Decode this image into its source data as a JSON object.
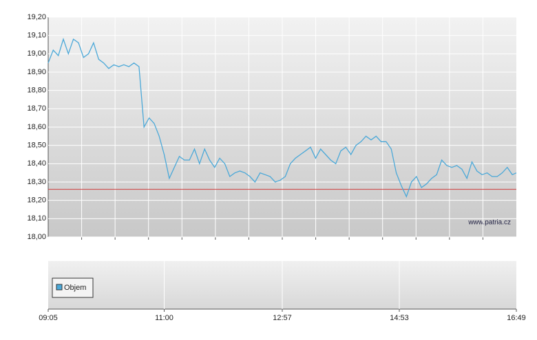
{
  "chart_data": {
    "type": "line",
    "x": [
      "09:05",
      "09:10",
      "09:15",
      "09:20",
      "09:25",
      "09:30",
      "09:35",
      "09:40",
      "09:45",
      "09:50",
      "09:55",
      "10:00",
      "10:05",
      "10:10",
      "10:15",
      "10:20",
      "10:25",
      "10:30",
      "10:35",
      "10:40",
      "10:45",
      "10:50",
      "10:55",
      "11:00",
      "11:05",
      "11:10",
      "11:15",
      "11:20",
      "11:25",
      "11:30",
      "11:35",
      "11:40",
      "11:45",
      "11:50",
      "11:55",
      "12:00",
      "12:05",
      "12:10",
      "12:15",
      "12:20",
      "12:25",
      "12:30",
      "12:35",
      "12:40",
      "12:45",
      "12:50",
      "12:55",
      "13:00",
      "13:05",
      "13:10",
      "13:15",
      "13:20",
      "13:25",
      "13:30",
      "13:35",
      "13:40",
      "13:45",
      "13:50",
      "13:55",
      "14:00",
      "14:05",
      "14:10",
      "14:15",
      "14:20",
      "14:25",
      "14:30",
      "14:35",
      "14:40",
      "14:45",
      "14:50",
      "14:55",
      "15:00",
      "15:05",
      "15:10",
      "15:15",
      "15:20",
      "15:25",
      "15:30",
      "15:35",
      "15:40",
      "15:45",
      "15:50",
      "15:55",
      "16:00",
      "16:05",
      "16:10",
      "16:15",
      "16:20",
      "16:25",
      "16:30",
      "16:35",
      "16:40",
      "16:45",
      "16:49"
    ],
    "values": [
      18.95,
      19.02,
      18.99,
      19.08,
      19.0,
      19.08,
      19.06,
      18.98,
      19.0,
      19.06,
      18.97,
      18.95,
      18.92,
      18.94,
      18.93,
      18.94,
      18.93,
      18.95,
      18.93,
      18.6,
      18.65,
      18.62,
      18.55,
      18.45,
      18.32,
      18.38,
      18.44,
      18.42,
      18.42,
      18.48,
      18.4,
      18.48,
      18.42,
      18.38,
      18.43,
      18.4,
      18.33,
      18.35,
      18.36,
      18.35,
      18.33,
      18.3,
      18.35,
      18.34,
      18.33,
      18.3,
      18.31,
      18.33,
      18.4,
      18.43,
      18.45,
      18.47,
      18.49,
      18.43,
      18.48,
      18.45,
      18.42,
      18.4,
      18.47,
      18.49,
      18.45,
      18.5,
      18.52,
      18.55,
      18.53,
      18.55,
      18.52,
      18.52,
      18.48,
      18.35,
      18.28,
      18.22,
      18.3,
      18.33,
      18.27,
      18.29,
      18.32,
      18.34,
      18.42,
      18.39,
      18.38,
      18.39,
      18.37,
      18.32,
      18.41,
      18.36,
      18.34,
      18.35,
      18.33,
      18.33,
      18.35,
      18.38,
      18.34,
      18.35
    ],
    "color": "#4aa8d8",
    "xlim": [
      "09:05",
      "16:49"
    ],
    "xticks": [
      "09:05",
      "11:00",
      "12:57",
      "14:53",
      "16:49"
    ],
    "ylim": [
      18.0,
      19.2
    ],
    "yticks": [
      {
        "value": 19.2,
        "label": "19,20"
      },
      {
        "value": 19.1,
        "label": "19,10"
      },
      {
        "value": 19.0,
        "label": "19,00"
      },
      {
        "value": 18.9,
        "label": "18,90"
      },
      {
        "value": 18.8,
        "label": "18,80"
      },
      {
        "value": 18.7,
        "label": "18,70"
      },
      {
        "value": 18.6,
        "label": "18,60"
      },
      {
        "value": 18.5,
        "label": "18,50"
      },
      {
        "value": 18.4,
        "label": "18,40"
      },
      {
        "value": 18.3,
        "label": "18,30"
      },
      {
        "value": 18.2,
        "label": "18,20"
      },
      {
        "value": 18.1,
        "label": "18,10"
      },
      {
        "value": 18.0,
        "label": "18,00"
      }
    ],
    "grid": true,
    "reference_line": 18.26,
    "reference_color": "#d04040",
    "watermark": "www.patria.cz",
    "legend": "Objem",
    "legend_color": "#4aa8d8"
  }
}
